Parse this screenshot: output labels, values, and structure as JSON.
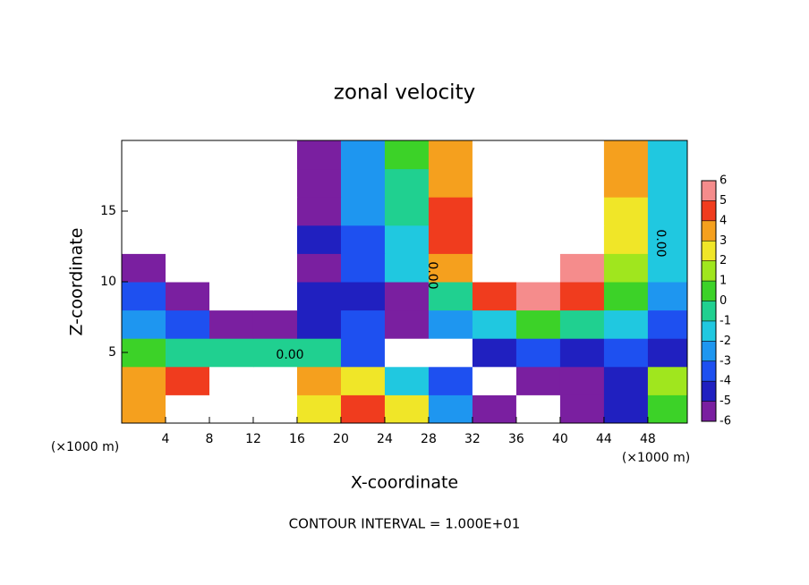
{
  "chart_data": {
    "type": "contour",
    "title": "zonal velocity",
    "x_label": "X-coordinate",
    "y_label": "Z-coordinate",
    "x_unit_label": "(×1000 m)",
    "y_unit_label": "(×1000 m)",
    "footnote": "CONTOUR INTERVAL = 1.000E+01",
    "xlim": [
      0,
      51.6
    ],
    "ylim": [
      0,
      20
    ],
    "xticks": [
      4,
      8,
      12,
      16,
      20,
      24,
      28,
      32,
      36,
      40,
      44,
      48
    ],
    "yticks": [
      5,
      10,
      15
    ],
    "contour_labels": [
      "0.00",
      "0.00",
      "0.00"
    ],
    "field": {
      "x": [
        2,
        6,
        10,
        14,
        18,
        22,
        26,
        30,
        34,
        38,
        42,
        46,
        50
      ],
      "z": [
        1,
        3,
        5,
        7,
        9,
        11,
        13,
        15,
        17,
        19
      ],
      "values": [
        [
          4,
          8,
          8,
          8,
          3,
          5,
          3,
          -2,
          -5,
          -8,
          -5,
          -4,
          1
        ],
        [
          4,
          5,
          8,
          8,
          4,
          3,
          -1,
          -3,
          -8,
          -5,
          -5,
          -4,
          2
        ],
        [
          1,
          0,
          0,
          -0.5,
          0,
          -3,
          -7,
          -7,
          -4,
          -3,
          -4,
          -3,
          -4
        ],
        [
          -2,
          -3,
          -5,
          -6,
          -4,
          -3,
          -5,
          -2,
          -1,
          1,
          0,
          -1,
          -3
        ],
        [
          -3,
          -6,
          -8,
          -8,
          -4,
          -4,
          -6,
          0,
          5,
          6,
          5,
          1,
          -2
        ],
        [
          -5,
          -8,
          -8,
          -8,
          -5,
          -3,
          -1,
          4,
          8,
          8,
          6,
          2,
          -1
        ],
        [
          -7,
          -8,
          -8,
          -8,
          -4,
          -3,
          -1,
          5,
          8,
          8,
          7,
          3,
          -1
        ],
        [
          -7,
          -8,
          -8,
          -8,
          -5,
          -2,
          0,
          5,
          8,
          8,
          7,
          3,
          -1
        ],
        [
          -7,
          -8,
          -8,
          -8,
          -5,
          -2,
          0,
          4,
          8,
          8,
          8,
          4,
          -1
        ],
        [
          -7,
          -8,
          -8,
          -8,
          -6,
          -2,
          0.5,
          4,
          8,
          8,
          8,
          4,
          -1
        ]
      ]
    },
    "colorbar": {
      "ticks": [
        -6,
        -5,
        -4,
        -3,
        -2,
        -1,
        0,
        1,
        2,
        3,
        4,
        5,
        6
      ],
      "colors": [
        "#7a1fa0",
        "#2020c0",
        "#1e50f0",
        "#1e96f0",
        "#20c8e0",
        "#20d090",
        "#3cd228",
        "#a0e61e",
        "#f0e628",
        "#f5a01e",
        "#f03c1e",
        "#f58c8c"
      ]
    }
  }
}
